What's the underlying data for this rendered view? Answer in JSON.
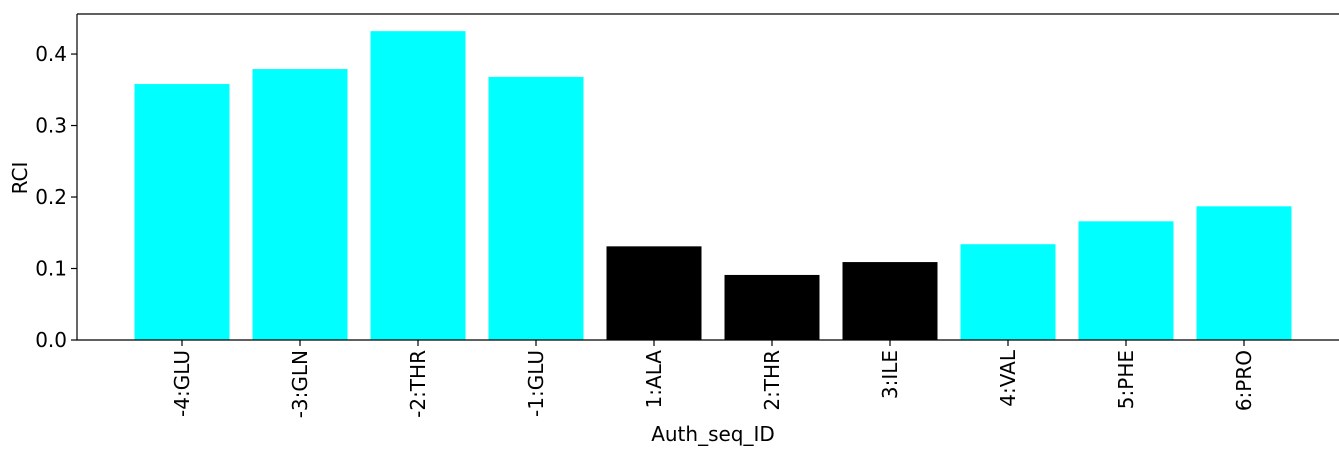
{
  "chart_data": {
    "type": "bar",
    "title": "",
    "xlabel": "Auth_seq_ID",
    "ylabel": "RCI",
    "categories": [
      "-4:GLU",
      "-3:GLN",
      "-2:THR",
      "-1:GLU",
      "1:ALA",
      "2:THR",
      "3:ILE",
      "4:VAL",
      "5:PHE",
      "6:PRO"
    ],
    "values": [
      0.358,
      0.379,
      0.432,
      0.368,
      0.131,
      0.091,
      0.109,
      0.134,
      0.166,
      0.187
    ],
    "bar_colors": [
      "#00ffff",
      "#00ffff",
      "#00ffff",
      "#00ffff",
      "#000000",
      "#000000",
      "#000000",
      "#00ffff",
      "#00ffff",
      "#00ffff"
    ],
    "ylim": [
      0,
      0.456
    ],
    "yticks": [
      0.0,
      0.1,
      0.2,
      0.3,
      0.4
    ],
    "ytick_labels": [
      "0.0",
      "0.1",
      "0.2",
      "0.3",
      "0.4"
    ],
    "grid": false,
    "legend": "none"
  }
}
